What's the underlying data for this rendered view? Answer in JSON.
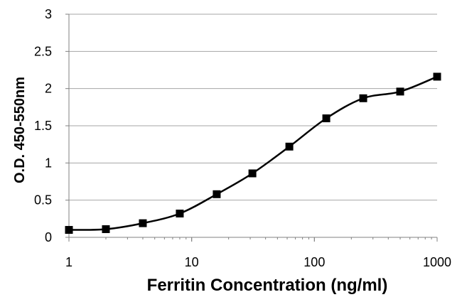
{
  "chart_data": {
    "type": "line",
    "xscale": "log",
    "x": [
      1,
      2,
      4,
      8,
      16,
      31.25,
      62.5,
      125,
      250,
      500,
      1000
    ],
    "series": [
      {
        "values": [
          0.1,
          0.11,
          0.19,
          0.32,
          0.58,
          0.86,
          1.22,
          1.6,
          1.87,
          1.96,
          2.16
        ]
      }
    ],
    "xlabel": "Ferritin Concentration (ng/ml)",
    "ylabel": "O.D. 450-550nm",
    "xlim": [
      1,
      1000
    ],
    "ylim": [
      0,
      3
    ],
    "xticks": [
      "1",
      "10",
      "100",
      "1000"
    ],
    "yticks": [
      "0",
      "0.5",
      "1",
      "1.5",
      "2",
      "2.5",
      "3"
    ],
    "grid": "horizontal",
    "marker": "square",
    "legend": "none",
    "colors": {
      "line": "#000000",
      "grid": "#a6a6a6",
      "axis": "#808080"
    }
  }
}
